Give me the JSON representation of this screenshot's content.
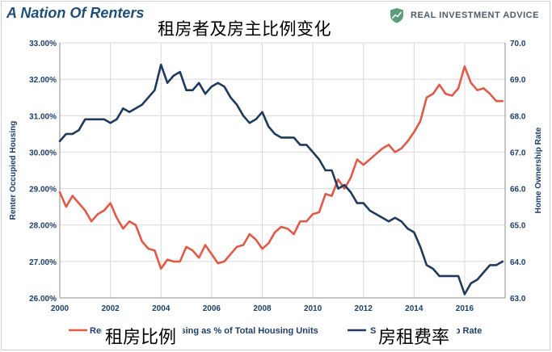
{
  "header": {
    "title": "A Nation Of Renters",
    "overlay_title": "租房者及房主比例变化",
    "brand": "REAL INVESTMENT ADVICE",
    "brand_icon": "shield-chart-icon",
    "brand_color": "#5a9e7c"
  },
  "legend": {
    "left_text": "Renter Occupied Housing as % of Total Housing Units",
    "left_overlay": "租房比例",
    "right_text": "S/A Home Ownership Rate",
    "right_overlay": "房租费率"
  },
  "chart_data": {
    "type": "line",
    "title": "A Nation Of Renters",
    "x_ticks": [
      "2000",
      "2002",
      "2004",
      "2006",
      "2008",
      "2010",
      "2012",
      "2014",
      "2016"
    ],
    "x_range": [
      2000,
      2017.6
    ],
    "left_axis": {
      "label": "Renter Occupied Housing",
      "range": [
        26,
        33
      ],
      "ticks": [
        "26.00%",
        "27.00%",
        "28.00%",
        "29.00%",
        "30.00%",
        "31.00%",
        "32.00%",
        "33.00%"
      ],
      "tick_values": [
        26,
        27,
        28,
        29,
        30,
        31,
        32,
        33
      ]
    },
    "right_axis": {
      "label": "Home Ownership Rate",
      "range": [
        63,
        70
      ],
      "ticks": [
        "63.0",
        "64.0",
        "65.0",
        "66.0",
        "67.0",
        "68.0",
        "69.0",
        "70.0"
      ],
      "tick_values": [
        63,
        64,
        65,
        66,
        67,
        68,
        69,
        70
      ]
    },
    "grid": true,
    "legend_position": "bottom",
    "series": [
      {
        "name": "Renter Occupied Housing as % of Total Housing Units",
        "axis": "left",
        "color": "#e05a47",
        "x": [
          2000.0,
          2000.25,
          2000.5,
          2000.75,
          2001.0,
          2001.25,
          2001.5,
          2001.75,
          2002.0,
          2002.25,
          2002.5,
          2002.75,
          2003.0,
          2003.25,
          2003.5,
          2003.75,
          2004.0,
          2004.25,
          2004.5,
          2004.75,
          2005.0,
          2005.25,
          2005.5,
          2005.75,
          2006.0,
          2006.25,
          2006.5,
          2006.75,
          2007.0,
          2007.25,
          2007.5,
          2007.75,
          2008.0,
          2008.25,
          2008.5,
          2008.75,
          2009.0,
          2009.25,
          2009.5,
          2009.75,
          2010.0,
          2010.25,
          2010.5,
          2010.75,
          2011.0,
          2011.25,
          2011.5,
          2011.75,
          2012.0,
          2012.25,
          2012.5,
          2012.75,
          2013.0,
          2013.25,
          2013.5,
          2013.75,
          2014.0,
          2014.25,
          2014.5,
          2014.75,
          2015.0,
          2015.25,
          2015.5,
          2015.75,
          2016.0,
          2016.25,
          2016.5,
          2016.75,
          2017.0,
          2017.25,
          2017.5
        ],
        "values": [
          28.9,
          28.5,
          28.8,
          28.6,
          28.4,
          28.1,
          28.3,
          28.4,
          28.6,
          28.2,
          27.9,
          28.1,
          28.0,
          27.55,
          27.35,
          27.3,
          26.8,
          27.05,
          27.0,
          27.0,
          27.4,
          27.3,
          27.1,
          27.45,
          27.2,
          26.95,
          27.0,
          27.2,
          27.4,
          27.45,
          27.75,
          27.6,
          27.35,
          27.5,
          27.8,
          27.95,
          27.9,
          27.75,
          28.1,
          28.1,
          28.3,
          28.35,
          28.85,
          28.8,
          29.25,
          29.0,
          29.3,
          29.8,
          29.65,
          29.8,
          29.95,
          30.1,
          30.2,
          30.0,
          30.1,
          30.3,
          30.55,
          30.85,
          31.5,
          31.6,
          31.85,
          31.6,
          31.55,
          31.75,
          32.35,
          31.9,
          31.7,
          31.75,
          31.6,
          31.4,
          31.4
        ]
      },
      {
        "name": "S/A Home Ownership Rate",
        "axis": "right",
        "color": "#1f3a5c",
        "x": [
          2000.0,
          2000.25,
          2000.5,
          2000.75,
          2001.0,
          2001.25,
          2001.5,
          2001.75,
          2002.0,
          2002.25,
          2002.5,
          2002.75,
          2003.0,
          2003.25,
          2003.5,
          2003.75,
          2004.0,
          2004.25,
          2004.5,
          2004.75,
          2005.0,
          2005.25,
          2005.5,
          2005.75,
          2006.0,
          2006.25,
          2006.5,
          2006.75,
          2007.0,
          2007.25,
          2007.5,
          2007.75,
          2008.0,
          2008.25,
          2008.5,
          2008.75,
          2009.0,
          2009.25,
          2009.5,
          2009.75,
          2010.0,
          2010.25,
          2010.5,
          2010.75,
          2011.0,
          2011.25,
          2011.5,
          2011.75,
          2012.0,
          2012.25,
          2012.5,
          2012.75,
          2013.0,
          2013.25,
          2013.5,
          2013.75,
          2014.0,
          2014.25,
          2014.5,
          2014.75,
          2015.0,
          2015.25,
          2015.5,
          2015.75,
          2016.0,
          2016.25,
          2016.5,
          2016.75,
          2017.0,
          2017.25,
          2017.5
        ],
        "values": [
          67.3,
          67.5,
          67.5,
          67.6,
          67.9,
          67.9,
          67.9,
          67.9,
          67.8,
          67.9,
          68.2,
          68.1,
          68.2,
          68.3,
          68.5,
          68.7,
          69.4,
          68.9,
          69.1,
          69.2,
          68.7,
          68.7,
          68.9,
          68.6,
          68.8,
          68.9,
          68.8,
          68.5,
          68.3,
          68.0,
          67.8,
          67.9,
          68.1,
          67.7,
          67.5,
          67.4,
          67.4,
          67.4,
          67.2,
          67.2,
          67.0,
          66.8,
          66.5,
          66.5,
          66.0,
          66.1,
          65.9,
          65.6,
          65.6,
          65.4,
          65.3,
          65.2,
          65.1,
          65.2,
          65.1,
          64.9,
          64.8,
          64.4,
          63.9,
          63.8,
          63.6,
          63.6,
          63.6,
          63.6,
          63.1,
          63.4,
          63.5,
          63.7,
          63.9,
          63.9,
          64.0
        ]
      }
    ]
  }
}
